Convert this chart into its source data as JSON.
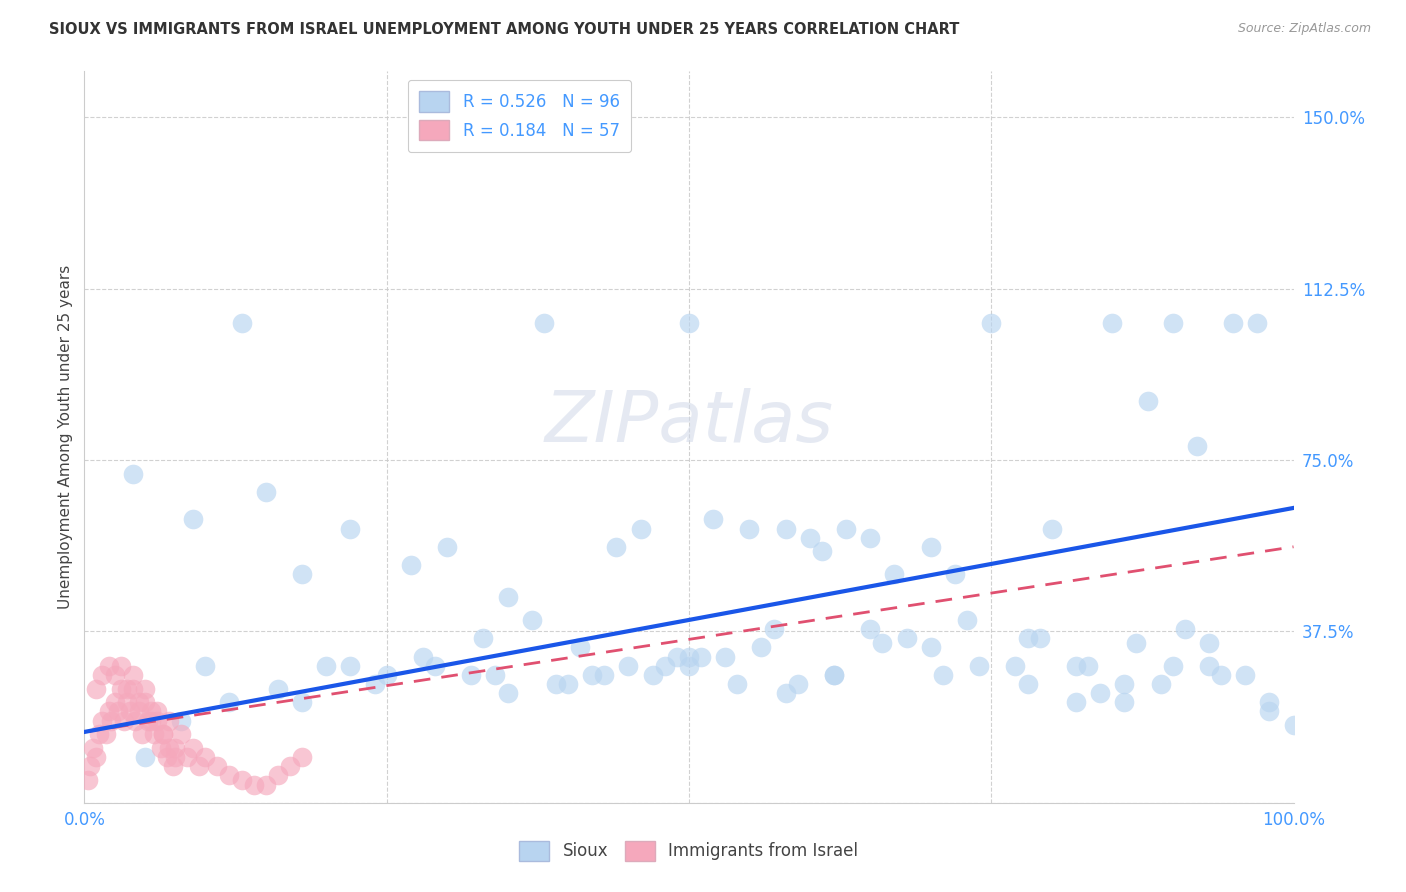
{
  "title": "SIOUX VS IMMIGRANTS FROM ISRAEL UNEMPLOYMENT AMONG YOUTH UNDER 25 YEARS CORRELATION CHART",
  "source": "Source: ZipAtlas.com",
  "ylabel": "Unemployment Among Youth under 25 years",
  "xlim": [
    0,
    1.0
  ],
  "ylim": [
    0,
    1.6
  ],
  "yticks": [
    0.0,
    0.375,
    0.75,
    1.125,
    1.5
  ],
  "ytick_labels": [
    "",
    "37.5%",
    "75.0%",
    "112.5%",
    "150.0%"
  ],
  "xtick_labels": [
    "0.0%",
    "",
    "",
    "",
    "100.0%"
  ],
  "sioux_color": "#b8d4f0",
  "israel_color": "#f5a8bc",
  "sioux_line_color": "#1a56e8",
  "israel_line_color": "#e05070",
  "R_sioux": 0.526,
  "N_sioux": 96,
  "R_israel": 0.184,
  "N_israel": 57,
  "watermark": "ZIPatlas",
  "sioux_x": [
    0.13,
    0.04,
    0.22,
    0.09,
    0.3,
    0.18,
    0.35,
    0.27,
    0.42,
    0.15,
    0.5,
    0.38,
    0.46,
    0.55,
    0.6,
    0.52,
    0.63,
    0.44,
    0.7,
    0.58,
    0.72,
    0.65,
    0.8,
    0.75,
    0.85,
    0.9,
    0.88,
    0.95,
    0.92,
    0.97,
    0.1,
    0.2,
    0.25,
    0.32,
    0.4,
    0.48,
    0.56,
    0.62,
    0.68,
    0.78,
    0.82,
    0.86,
    0.93,
    0.98,
    1.0,
    0.05,
    0.08,
    0.12,
    0.16,
    0.22,
    0.28,
    0.34,
    0.39,
    0.45,
    0.51,
    0.57,
    0.61,
    0.67,
    0.73,
    0.79,
    0.83,
    0.87,
    0.91,
    0.96,
    0.5,
    0.5,
    0.54,
    0.58,
    0.62,
    0.65,
    0.7,
    0.74,
    0.78,
    0.82,
    0.86,
    0.9,
    0.94,
    0.98,
    0.33,
    0.37,
    0.41,
    0.47,
    0.53,
    0.59,
    0.66,
    0.71,
    0.77,
    0.84,
    0.89,
    0.93,
    0.18,
    0.24,
    0.29,
    0.35,
    0.43,
    0.49
  ],
  "sioux_y": [
    1.05,
    0.72,
    0.6,
    0.62,
    0.56,
    0.5,
    0.45,
    0.52,
    0.28,
    0.68,
    1.05,
    1.05,
    0.6,
    0.6,
    0.58,
    0.62,
    0.6,
    0.56,
    0.56,
    0.6,
    0.5,
    0.58,
    0.6,
    1.05,
    1.05,
    1.05,
    0.88,
    1.05,
    0.78,
    1.05,
    0.3,
    0.3,
    0.28,
    0.28,
    0.26,
    0.3,
    0.34,
    0.28,
    0.36,
    0.36,
    0.3,
    0.22,
    0.35,
    0.2,
    0.17,
    0.1,
    0.18,
    0.22,
    0.25,
    0.3,
    0.32,
    0.28,
    0.26,
    0.3,
    0.32,
    0.38,
    0.55,
    0.5,
    0.4,
    0.36,
    0.3,
    0.35,
    0.38,
    0.28,
    0.3,
    0.32,
    0.26,
    0.24,
    0.28,
    0.38,
    0.34,
    0.3,
    0.26,
    0.22,
    0.26,
    0.3,
    0.28,
    0.22,
    0.36,
    0.4,
    0.34,
    0.28,
    0.32,
    0.26,
    0.35,
    0.28,
    0.3,
    0.24,
    0.26,
    0.3,
    0.22,
    0.26,
    0.3,
    0.24,
    0.28,
    0.32
  ],
  "israel_x": [
    0.003,
    0.005,
    0.007,
    0.01,
    0.012,
    0.015,
    0.018,
    0.02,
    0.022,
    0.025,
    0.028,
    0.03,
    0.033,
    0.035,
    0.038,
    0.04,
    0.042,
    0.045,
    0.048,
    0.05,
    0.053,
    0.055,
    0.058,
    0.06,
    0.063,
    0.065,
    0.068,
    0.07,
    0.073,
    0.075,
    0.01,
    0.015,
    0.02,
    0.025,
    0.03,
    0.035,
    0.04,
    0.045,
    0.05,
    0.055,
    0.06,
    0.065,
    0.07,
    0.075,
    0.08,
    0.085,
    0.09,
    0.095,
    0.1,
    0.11,
    0.12,
    0.13,
    0.14,
    0.15,
    0.16,
    0.17,
    0.18
  ],
  "israel_y": [
    0.05,
    0.08,
    0.12,
    0.1,
    0.15,
    0.18,
    0.15,
    0.2,
    0.18,
    0.22,
    0.2,
    0.25,
    0.18,
    0.22,
    0.2,
    0.25,
    0.18,
    0.2,
    0.15,
    0.22,
    0.18,
    0.2,
    0.15,
    0.18,
    0.12,
    0.15,
    0.1,
    0.12,
    0.08,
    0.1,
    0.25,
    0.28,
    0.3,
    0.28,
    0.3,
    0.25,
    0.28,
    0.22,
    0.25,
    0.18,
    0.2,
    0.15,
    0.18,
    0.12,
    0.15,
    0.1,
    0.12,
    0.08,
    0.1,
    0.08,
    0.06,
    0.05,
    0.04,
    0.04,
    0.06,
    0.08,
    0.1
  ],
  "sioux_line_x": [
    0.0,
    1.0
  ],
  "sioux_line_y": [
    0.155,
    0.645
  ],
  "israel_line_x": [
    0.0,
    1.0
  ],
  "israel_line_y": [
    0.155,
    0.56
  ]
}
